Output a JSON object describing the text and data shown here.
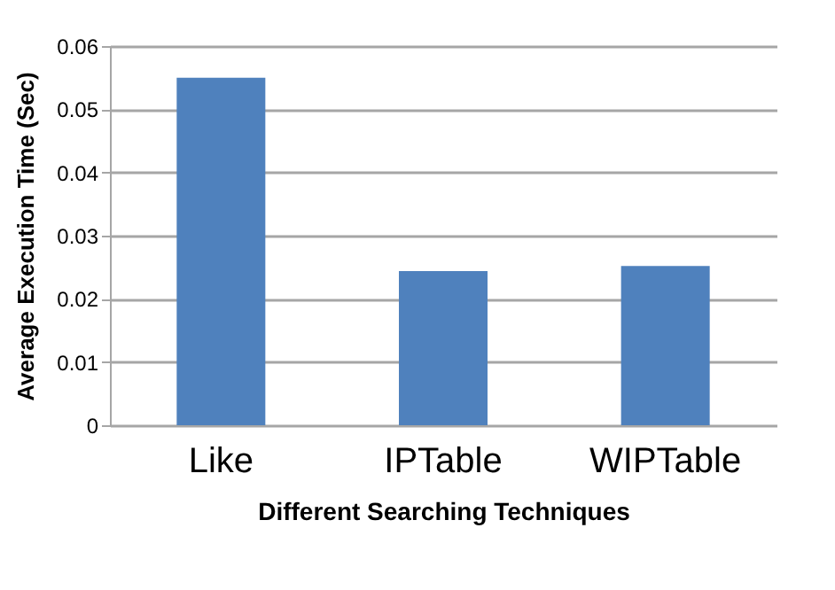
{
  "chart_data": {
    "type": "bar",
    "xlabel": "Different Searching Techniques",
    "ylabel": "Average Execution Time (Sec)",
    "categories": [
      "Like",
      "IPTable",
      "WIPTable"
    ],
    "values": [
      0.055,
      0.0244,
      0.0252
    ],
    "color": "#4f81bd",
    "ylim": [
      0,
      0.06
    ],
    "yticks": [
      0,
      0.01,
      0.02,
      0.03,
      0.04,
      0.05,
      0.06
    ],
    "grid": "y"
  }
}
